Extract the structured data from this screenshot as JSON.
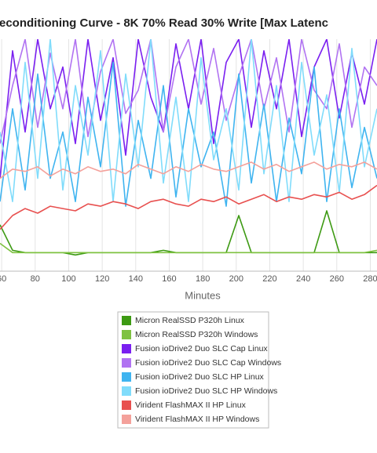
{
  "chart_data": {
    "type": "line",
    "title": "econditioning Curve - 8K 70% Read 30% Write [Max Latenc",
    "x_label": "Minutes",
    "x": [
      59,
      66.5,
      74,
      81.5,
      89,
      96.5,
      104,
      111.5,
      119,
      126.5,
      134,
      141.5,
      149,
      156.5,
      164,
      171.5,
      179,
      186.5,
      194,
      201.5,
      209,
      216.5,
      224,
      231.5,
      239,
      246.5,
      254,
      261.5,
      269,
      276.5,
      284
    ],
    "xlim": [
      59,
      284
    ],
    "xticks": [
      60,
      80,
      100,
      120,
      140,
      160,
      180,
      200,
      220,
      240,
      260,
      280
    ],
    "ylim": [
      0,
      100
    ],
    "grid": true,
    "series": [
      {
        "name": "Micron RealSSD P320h Linux",
        "color": "#3d9a13",
        "values": [
          20,
          9,
          8,
          8,
          8,
          8,
          7,
          8,
          8,
          8,
          8,
          8,
          8,
          9,
          8,
          8,
          8,
          8,
          8,
          24,
          8,
          8,
          8,
          8,
          8,
          8,
          26,
          8,
          8,
          8,
          8
        ]
      },
      {
        "name": "Micron RealSSD P320h Windows",
        "color": "#7fc241",
        "values": [
          12,
          8,
          8,
          8,
          8,
          8,
          8,
          8,
          8,
          8,
          8,
          8,
          8,
          8,
          8,
          8,
          8,
          8,
          8,
          8,
          8,
          8,
          8,
          8,
          8,
          8,
          8,
          8,
          8,
          8,
          9
        ]
      },
      {
        "name": "Fusion ioDrive2 Duo SLC Cap Linux",
        "color": "#7a1ff0",
        "values": [
          40,
          95,
          60,
          100,
          70,
          88,
          55,
          100,
          65,
          92,
          50,
          100,
          75,
          60,
          98,
          70,
          100,
          55,
          90,
          100,
          62,
          95,
          70,
          100,
          58,
          88,
          100,
          66,
          94,
          72,
          100
        ]
      },
      {
        "name": "Fusion ioDrive2 Duo SLC Cap Windows",
        "color": "#b173f2",
        "values": [
          55,
          80,
          100,
          62,
          94,
          70,
          100,
          58,
          86,
          100,
          68,
          78,
          100,
          60,
          88,
          100,
          72,
          96,
          65,
          84,
          100,
          70,
          92,
          60,
          100,
          78,
          70,
          98,
          62,
          88,
          80
        ]
      },
      {
        "name": "Fusion ioDrive2 Duo SLC HP Linux",
        "color": "#3fb4f0",
        "values": [
          30,
          70,
          35,
          85,
          40,
          60,
          30,
          75,
          45,
          90,
          28,
          65,
          40,
          80,
          32,
          70,
          45,
          60,
          28,
          85,
          38,
          72,
          30,
          66,
          42,
          88,
          30,
          70,
          36,
          62,
          40
        ]
      },
      {
        "name": "Fusion ioDrive2 Duo SLC HP Windows",
        "color": "#80dcfb",
        "values": [
          60,
          30,
          90,
          40,
          100,
          35,
          80,
          50,
          95,
          30,
          85,
          45,
          100,
          38,
          75,
          30,
          92,
          48,
          70,
          35,
          100,
          42,
          80,
          30,
          90,
          50,
          76,
          34,
          96,
          45,
          70
        ]
      },
      {
        "name": "Virident FlashMAX II HP Linux",
        "color": "#e8504f",
        "values": [
          18,
          24,
          27,
          25,
          28,
          27,
          26,
          29,
          28,
          30,
          29,
          27,
          30,
          31,
          29,
          28,
          31,
          30,
          32,
          29,
          31,
          33,
          30,
          32,
          31,
          33,
          32,
          34,
          31,
          33,
          37
        ]
      },
      {
        "name": "Virident FlashMAX II HP Windows",
        "color": "#f4a19b",
        "values": [
          40,
          44,
          43,
          45,
          41,
          44,
          42,
          45,
          43,
          44,
          42,
          46,
          44,
          42,
          45,
          43,
          46,
          44,
          43,
          45,
          47,
          44,
          46,
          43,
          45,
          47,
          44,
          46,
          45,
          47,
          44
        ]
      }
    ]
  }
}
